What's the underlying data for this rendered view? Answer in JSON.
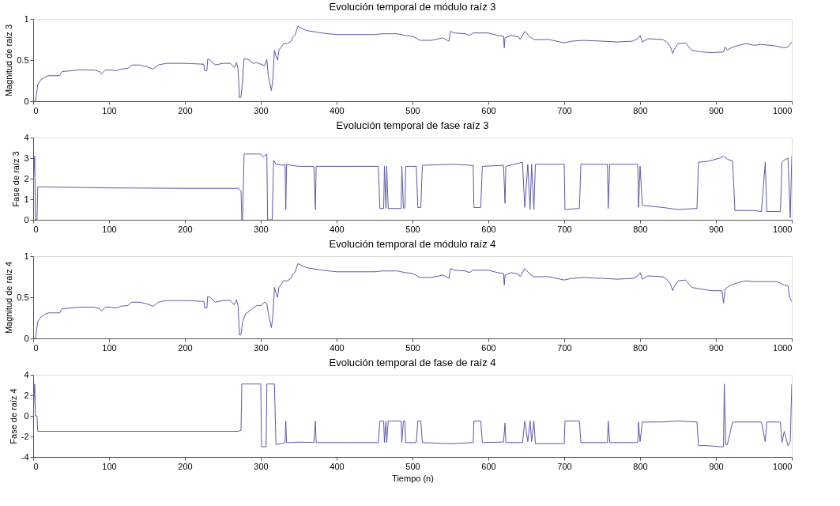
{
  "chart_data": [
    {
      "type": "line",
      "title": "Evolución temporal de módulo raíz 3",
      "ylabel": "Magnitud de raíz 3",
      "xlim": [
        0,
        1000
      ],
      "xticks": [
        0,
        100,
        200,
        300,
        400,
        500,
        600,
        700,
        800,
        900,
        1000
      ],
      "ylim": [
        0,
        1
      ],
      "yticks": [
        0,
        0.5,
        1
      ],
      "grid": false,
      "series": [
        {
          "color": "#5a5aa8",
          "x": [
            0,
            3,
            6,
            10,
            15,
            20,
            35,
            38,
            50,
            60,
            80,
            88,
            90,
            95,
            100,
            110,
            115,
            125,
            130,
            140,
            150,
            158,
            165,
            175,
            200,
            225,
            226,
            229,
            230,
            233,
            240,
            250,
            260,
            265,
            268,
            270,
            272,
            274,
            276,
            278,
            285,
            290,
            295,
            300,
            305,
            308,
            310,
            314,
            316,
            318,
            320,
            322,
            324,
            330,
            335,
            340,
            342,
            345,
            349,
            360,
            380,
            400,
            450,
            460,
            480,
            490,
            500,
            510,
            525,
            540,
            548,
            550,
            555,
            570,
            575,
            580,
            600,
            612,
            620,
            621,
            622,
            630,
            640,
            642,
            648,
            655,
            660,
            680,
            700,
            710,
            725,
            750,
            770,
            790,
            797,
            800,
            803,
            810,
            830,
            835,
            840,
            843,
            845,
            850,
            860,
            868,
            880,
            895,
            910,
            912,
            915,
            920,
            930,
            940,
            950,
            960,
            980,
            990,
            995,
            1000
          ],
          "values": [
            0,
            0,
            0.2,
            0.26,
            0.29,
            0.31,
            0.31,
            0.36,
            0.37,
            0.38,
            0.38,
            0.36,
            0.33,
            0.38,
            0.38,
            0.37,
            0.39,
            0.4,
            0.44,
            0.44,
            0.42,
            0.39,
            0.44,
            0.46,
            0.46,
            0.45,
            0.37,
            0.37,
            0.51,
            0.5,
            0.44,
            0.46,
            0.46,
            0.41,
            0.47,
            0.4,
            0.04,
            0.05,
            0.25,
            0.52,
            0.5,
            0.46,
            0.47,
            0.45,
            0.43,
            0.51,
            0.3,
            0.13,
            0.28,
            0.62,
            0.55,
            0.5,
            0.62,
            0.7,
            0.7,
            0.73,
            0.78,
            0.8,
            0.91,
            0.86,
            0.83,
            0.81,
            0.81,
            0.82,
            0.82,
            0.8,
            0.79,
            0.74,
            0.74,
            0.77,
            0.73,
            0.85,
            0.83,
            0.82,
            0.8,
            0.83,
            0.83,
            0.8,
            0.79,
            0.65,
            0.77,
            0.8,
            0.78,
            0.75,
            0.85,
            0.78,
            0.75,
            0.75,
            0.71,
            0.73,
            0.74,
            0.73,
            0.72,
            0.73,
            0.76,
            0.8,
            0.72,
            0.76,
            0.75,
            0.72,
            0.66,
            0.58,
            0.63,
            0.7,
            0.71,
            0.62,
            0.6,
            0.59,
            0.6,
            0.66,
            0.62,
            0.65,
            0.68,
            0.7,
            0.68,
            0.69,
            0.67,
            0.65,
            0.66,
            0.72
          ]
        }
      ]
    },
    {
      "type": "line",
      "title": "Evolución temporal de fase raíz 3",
      "ylabel": "Fase de raíz 3",
      "xlim": [
        0,
        1000
      ],
      "xticks": [
        0,
        100,
        200,
        300,
        400,
        500,
        600,
        700,
        800,
        900,
        1000
      ],
      "ylim": [
        0,
        4
      ],
      "yticks": [
        0,
        1,
        2,
        3,
        4
      ],
      "grid": false,
      "series": [
        {
          "color": "#5a5aa8",
          "x": [
            0,
            2,
            3,
            5,
            6,
            50,
            100,
            200,
            270,
            274,
            275,
            276,
            278,
            300,
            303,
            308,
            309,
            315,
            317,
            320,
            330,
            332,
            333,
            334,
            340,
            350,
            370,
            372,
            373,
            410,
            455,
            457,
            462,
            463,
            465,
            466,
            468,
            480,
            485,
            486,
            488,
            490,
            491,
            505,
            507,
            511,
            513,
            550,
            580,
            581,
            590,
            592,
            620,
            622,
            623,
            645,
            648,
            652,
            655,
            657,
            660,
            662,
            700,
            701,
            720,
            722,
            757,
            758,
            760,
            797,
            798,
            800,
            803,
            830,
            850,
            875,
            877,
            890,
            905,
            910,
            915,
            922,
            925,
            950,
            960,
            965,
            967,
            985,
            987,
            990,
            995,
            998,
            1000
          ],
          "values": [
            1.5,
            3.1,
            0,
            0,
            1.6,
            1.58,
            1.55,
            1.53,
            1.53,
            1.4,
            0,
            0,
            3.2,
            3.2,
            3.05,
            3.2,
            0,
            0,
            2.9,
            2.7,
            2.65,
            2.7,
            0.5,
            2.7,
            2.65,
            2.6,
            2.6,
            0.5,
            2.6,
            2.6,
            2.6,
            0.55,
            0.55,
            2.6,
            0.55,
            2.6,
            0.55,
            0.55,
            0.55,
            2.6,
            0.55,
            0.6,
            2.6,
            2.6,
            0.6,
            0.6,
            2.65,
            2.7,
            2.65,
            0.6,
            0.6,
            2.6,
            2.65,
            0.8,
            2.6,
            2.8,
            0.6,
            2.7,
            0.5,
            2.7,
            0.5,
            2.7,
            2.7,
            0.5,
            0.55,
            2.7,
            2.7,
            0.55,
            2.7,
            2.7,
            0.6,
            2.6,
            0.7,
            0.6,
            0.5,
            0.55,
            2.8,
            2.85,
            3.0,
            3.1,
            2.95,
            2.85,
            0.45,
            0.45,
            0.4,
            2.8,
            0.4,
            0.4,
            2.8,
            2.9,
            3.0,
            0.1,
            3.1
          ]
        }
      ]
    },
    {
      "type": "line",
      "title": "Evolución temporal de módulo raíz 4",
      "ylabel": "Magnitud de raíz 4",
      "xlim": [
        0,
        1000
      ],
      "xticks": [
        0,
        100,
        200,
        300,
        400,
        500,
        600,
        700,
        800,
        900,
        1000
      ],
      "ylim": [
        0,
        1
      ],
      "yticks": [
        0,
        0.5,
        1
      ],
      "grid": false,
      "series": [
        {
          "color": "#5a5aa8",
          "x": [
            0,
            3,
            6,
            10,
            15,
            20,
            35,
            38,
            50,
            60,
            80,
            88,
            90,
            95,
            100,
            110,
            115,
            125,
            130,
            140,
            150,
            158,
            165,
            175,
            200,
            225,
            226,
            229,
            230,
            233,
            240,
            250,
            260,
            265,
            268,
            270,
            272,
            274,
            276,
            280,
            285,
            290,
            295,
            300,
            305,
            308,
            310,
            314,
            316,
            318,
            320,
            322,
            324,
            330,
            335,
            340,
            342,
            345,
            349,
            360,
            380,
            400,
            450,
            460,
            480,
            490,
            500,
            510,
            525,
            540,
            548,
            550,
            555,
            570,
            575,
            580,
            600,
            612,
            620,
            621,
            622,
            630,
            640,
            642,
            648,
            655,
            660,
            680,
            700,
            710,
            725,
            750,
            770,
            790,
            797,
            800,
            803,
            810,
            830,
            835,
            840,
            843,
            845,
            850,
            860,
            868,
            880,
            895,
            908,
            910,
            912,
            915,
            920,
            930,
            940,
            950,
            960,
            980,
            990,
            995,
            997,
            1000
          ],
          "values": [
            0,
            0,
            0.2,
            0.26,
            0.29,
            0.31,
            0.31,
            0.36,
            0.37,
            0.38,
            0.38,
            0.36,
            0.33,
            0.38,
            0.38,
            0.37,
            0.39,
            0.4,
            0.44,
            0.44,
            0.42,
            0.39,
            0.44,
            0.46,
            0.46,
            0.45,
            0.37,
            0.37,
            0.51,
            0.5,
            0.44,
            0.46,
            0.46,
            0.41,
            0.47,
            0.4,
            0.04,
            0.05,
            0.2,
            0.3,
            0.33,
            0.37,
            0.4,
            0.4,
            0.44,
            0.42,
            0.3,
            0.13,
            0.28,
            0.62,
            0.55,
            0.5,
            0.62,
            0.7,
            0.7,
            0.73,
            0.78,
            0.8,
            0.91,
            0.86,
            0.83,
            0.81,
            0.81,
            0.82,
            0.82,
            0.8,
            0.79,
            0.74,
            0.74,
            0.77,
            0.73,
            0.85,
            0.83,
            0.82,
            0.8,
            0.83,
            0.83,
            0.8,
            0.79,
            0.65,
            0.77,
            0.8,
            0.78,
            0.75,
            0.85,
            0.78,
            0.75,
            0.75,
            0.71,
            0.73,
            0.74,
            0.73,
            0.72,
            0.73,
            0.76,
            0.8,
            0.72,
            0.76,
            0.75,
            0.72,
            0.66,
            0.58,
            0.63,
            0.7,
            0.71,
            0.62,
            0.6,
            0.58,
            0.58,
            0.43,
            0.6,
            0.62,
            0.65,
            0.68,
            0.7,
            0.69,
            0.69,
            0.69,
            0.65,
            0.64,
            0.5,
            0.45
          ]
        }
      ]
    },
    {
      "type": "line",
      "title": "Evolución temporal de fase de raíz 4",
      "ylabel": "Fase de raíz 4",
      "xlabel": "Tiempo (n)",
      "xlim": [
        0,
        1000
      ],
      "xticks": [
        0,
        100,
        200,
        300,
        400,
        500,
        600,
        700,
        800,
        900,
        1000
      ],
      "ylim": [
        -4,
        4
      ],
      "yticks": [
        -4,
        -2,
        0,
        2,
        4
      ],
      "grid": false,
      "series": [
        {
          "color": "#5a5aa8",
          "x": [
            0,
            2,
            3,
            5,
            6,
            50,
            100,
            200,
            270,
            274,
            275,
            276,
            300,
            301,
            307,
            308,
            318,
            320,
            330,
            332,
            333,
            334,
            340,
            350,
            370,
            372,
            373,
            410,
            455,
            457,
            462,
            463,
            465,
            466,
            468,
            480,
            485,
            486,
            488,
            490,
            491,
            505,
            507,
            511,
            513,
            550,
            580,
            581,
            590,
            592,
            620,
            622,
            623,
            645,
            648,
            652,
            655,
            657,
            660,
            662,
            700,
            701,
            720,
            722,
            757,
            758,
            760,
            797,
            798,
            800,
            803,
            830,
            850,
            875,
            877,
            890,
            905,
            910,
            911,
            913,
            915,
            922,
            950,
            960,
            965,
            967,
            985,
            987,
            990,
            995,
            998,
            1000
          ],
          "values": [
            0,
            3.1,
            0,
            0,
            -1.5,
            -1.5,
            -1.5,
            -1.5,
            -1.5,
            -1.4,
            3.1,
            3.1,
            3.1,
            -3,
            -3,
            3.1,
            3.1,
            -2.8,
            -2.65,
            -2.6,
            -0.5,
            -2.6,
            -2.6,
            -2.55,
            -2.6,
            -0.5,
            -2.6,
            -2.6,
            -2.6,
            -0.5,
            -0.5,
            -2.6,
            -0.5,
            -2.6,
            -0.5,
            -0.5,
            -0.5,
            -2.6,
            -0.5,
            -0.5,
            -2.6,
            -2.6,
            -0.5,
            -0.5,
            -2.6,
            -2.7,
            -2.6,
            -0.5,
            -0.5,
            -2.6,
            -2.55,
            -0.7,
            -2.6,
            -2.6,
            -0.5,
            -2.5,
            -0.5,
            -2.5,
            -0.5,
            -2.7,
            -2.7,
            -0.5,
            -0.5,
            -2.6,
            -2.6,
            -0.5,
            -2.6,
            -2.6,
            -0.6,
            -2.5,
            -0.6,
            -0.6,
            -0.5,
            -0.6,
            -2.9,
            -2.9,
            -3.0,
            -3.0,
            3.1,
            -2.8,
            -2.8,
            -0.6,
            -0.6,
            -0.6,
            -2.5,
            -0.6,
            -0.6,
            -2.6,
            -1.5,
            -2.9,
            -2.5,
            3.1
          ]
        }
      ]
    }
  ]
}
